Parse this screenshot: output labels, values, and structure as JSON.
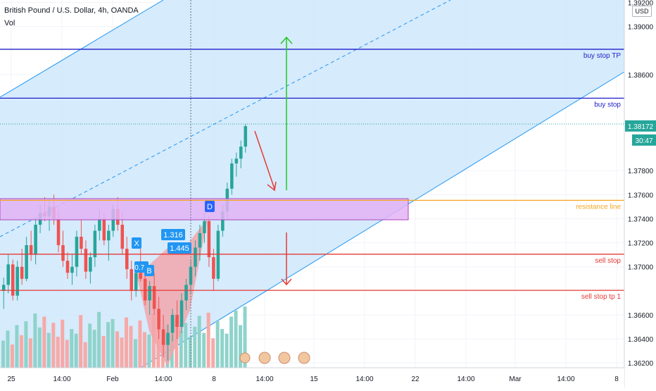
{
  "header": {
    "title": "British Pound / U.S. Dollar, 4h, OANDA",
    "indicator": "Vol",
    "currency": "USD"
  },
  "colors": {
    "up": "#26a69a",
    "down": "#ef5350",
    "vol_up": "#8fd3cb",
    "vol_down": "#f7a9a7",
    "channel_fill": "#cfe8fb",
    "channel_line": "#2196f3",
    "blue_level": "#1e1ec8",
    "red_level": "#e53935",
    "orange_level": "#f5a623",
    "resistance_fill": "#e3b3f5",
    "resistance_border": "#ab47bc",
    "pattern_fill": "#f4a3a8",
    "label_blue": "#2962ff",
    "arrow_red": "#e53935",
    "arrow_green": "#22c922",
    "grid": "#f0f3fa",
    "crosshair": "#6b6f7b"
  },
  "price_axis": {
    "ticks": [
      "1.39200",
      "1.39000",
      "1.38600",
      "1.37800",
      "1.37600",
      "1.37400",
      "1.37200",
      "1.37000",
      "1.36600",
      "1.36400",
      "1.36200"
    ],
    "last_price": "1.38172",
    "countdown": "30:47"
  },
  "time_axis": {
    "ticks": [
      "25",
      "14:00",
      "Feb",
      "14:00",
      "8",
      "14:00",
      "15",
      "14:00",
      "22",
      "14:00",
      "Mar",
      "14:00",
      "8"
    ]
  },
  "levels": [
    {
      "name": "buy stop TP",
      "price": "1.38810",
      "color": "#1e1ec8"
    },
    {
      "name": "buy stop",
      "price": "1.38403",
      "color": "#1e1ec8"
    },
    {
      "name": "resistance line",
      "price": "1.37553",
      "color": "#f5a623"
    },
    {
      "name": "sell stop",
      "price": "1.37105",
      "color": "#e53935"
    },
    {
      "name": "sell stop tp 1",
      "price": "1.36804",
      "color": "#e53935"
    }
  ],
  "pattern": {
    "points": [
      "X",
      "B",
      "D"
    ],
    "ratios": [
      "1.316",
      "1.445",
      "0.74"
    ]
  },
  "chart_data": {
    "type": "candlestick",
    "title": "British Pound / U.S. Dollar, 4h, OANDA",
    "ylim": [
      1.3616,
      1.3922
    ],
    "grid": true,
    "candles": [
      [
        1.368,
        1.3691,
        1.3665,
        1.3685
      ],
      [
        1.3685,
        1.371,
        1.3678,
        1.3702
      ],
      [
        1.3702,
        1.3706,
        1.3672,
        1.3676
      ],
      [
        1.3676,
        1.3705,
        1.3672,
        1.37
      ],
      [
        1.37,
        1.3715,
        1.3685,
        1.369
      ],
      [
        1.369,
        1.3725,
        1.3688,
        1.3718
      ],
      [
        1.3718,
        1.373,
        1.3705,
        1.371
      ],
      [
        1.371,
        1.374,
        1.3702,
        1.3735
      ],
      [
        1.3735,
        1.3752,
        1.3728,
        1.3745
      ],
      [
        1.3745,
        1.3758,
        1.3738,
        1.3742
      ],
      [
        1.3742,
        1.3756,
        1.373,
        1.375
      ],
      [
        1.375,
        1.376,
        1.3735,
        1.374
      ],
      [
        1.374,
        1.3748,
        1.3712,
        1.3718
      ],
      [
        1.3718,
        1.373,
        1.37,
        1.3705
      ],
      [
        1.3705,
        1.3712,
        1.369,
        1.3695
      ],
      [
        1.3695,
        1.371,
        1.3685,
        1.37
      ],
      [
        1.37,
        1.373,
        1.3692,
        1.3725
      ],
      [
        1.3725,
        1.374,
        1.371,
        1.3715
      ],
      [
        1.3715,
        1.3722,
        1.369,
        1.3696
      ],
      [
        1.3696,
        1.3712,
        1.3686,
        1.3708
      ],
      [
        1.3708,
        1.3735,
        1.37,
        1.373
      ],
      [
        1.373,
        1.3748,
        1.3722,
        1.374
      ],
      [
        1.374,
        1.3745,
        1.3718,
        1.3722
      ],
      [
        1.3722,
        1.3735,
        1.3705,
        1.373
      ],
      [
        1.373,
        1.3752,
        1.3725,
        1.3748
      ],
      [
        1.3748,
        1.3758,
        1.373,
        1.3735
      ],
      [
        1.3735,
        1.3745,
        1.371,
        1.3715
      ],
      [
        1.3715,
        1.3725,
        1.369,
        1.3698
      ],
      [
        1.3698,
        1.3705,
        1.3672,
        1.368
      ],
      [
        1.368,
        1.37,
        1.3675,
        1.3695
      ],
      [
        1.3695,
        1.3715,
        1.3688,
        1.369
      ],
      [
        1.369,
        1.37,
        1.3668,
        1.3672
      ],
      [
        1.3672,
        1.3688,
        1.366,
        1.3684
      ],
      [
        1.3684,
        1.3695,
        1.366,
        1.3665
      ],
      [
        1.3665,
        1.3675,
        1.364,
        1.3648
      ],
      [
        1.3648,
        1.366,
        1.3625,
        1.3635
      ],
      [
        1.3635,
        1.3652,
        1.3622,
        1.3645
      ],
      [
        1.3645,
        1.3665,
        1.3638,
        1.366
      ],
      [
        1.366,
        1.3672,
        1.364,
        1.365
      ],
      [
        1.365,
        1.3678,
        1.3645,
        1.3672
      ],
      [
        1.3672,
        1.369,
        1.3664,
        1.3685
      ],
      [
        1.3685,
        1.3705,
        1.3678,
        1.37
      ],
      [
        1.37,
        1.3722,
        1.3692,
        1.3716
      ],
      [
        1.3716,
        1.3735,
        1.3705,
        1.3728
      ],
      [
        1.3728,
        1.3745,
        1.372,
        1.3738
      ],
      [
        1.3738,
        1.3742,
        1.37,
        1.3708
      ],
      [
        1.3708,
        1.3715,
        1.368,
        1.369
      ],
      [
        1.369,
        1.3735,
        1.3688,
        1.373
      ],
      [
        1.373,
        1.3752,
        1.3725,
        1.3746
      ],
      [
        1.3746,
        1.377,
        1.374,
        1.3765
      ],
      [
        1.3765,
        1.379,
        1.376,
        1.3786
      ],
      [
        1.3786,
        1.3795,
        1.3775,
        1.379
      ],
      [
        1.379,
        1.3805,
        1.3782,
        1.38
      ],
      [
        1.38,
        1.3819,
        1.3795,
        1.3817
      ]
    ],
    "volume": [
      35,
      48,
      30,
      55,
      42,
      60,
      38,
      70,
      52,
      66,
      45,
      58,
      40,
      62,
      36,
      50,
      44,
      68,
      33,
      57,
      49,
      72,
      41,
      59,
      63,
      47,
      39,
      65,
      54,
      37,
      61,
      46,
      43,
      69,
      51,
      34,
      56,
      42,
      64,
      48,
      58,
      40,
      53,
      67,
      45,
      71,
      38,
      60,
      50,
      44,
      66,
      74,
      55,
      79
    ]
  }
}
